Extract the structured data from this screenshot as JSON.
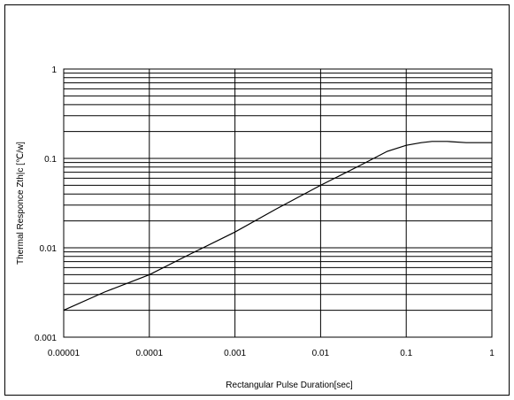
{
  "chart_data": {
    "type": "line",
    "title": "",
    "xlabel": "Rectangular Pulse Duration[sec]",
    "ylabel": "Thermal Responce Zth|c [℃/w]",
    "x_scale": "log",
    "y_scale": "log",
    "xlim": [
      1e-05,
      1
    ],
    "ylim": [
      0.001,
      1
    ],
    "grid": true,
    "x_ticks": [
      "0.00001",
      "0.0001",
      "0.001",
      "0.01",
      "0.1",
      "1"
    ],
    "y_ticks": [
      "0.001",
      "0.01",
      "0.1",
      "1"
    ],
    "series": [
      {
        "color": "#000000",
        "x": [
          1e-05,
          3e-05,
          0.0001,
          0.0003,
          0.001,
          0.003,
          0.01,
          0.03,
          0.06,
          0.1,
          0.15,
          0.2,
          0.3,
          0.5,
          1
        ],
        "y": [
          0.002,
          0.0032,
          0.005,
          0.0085,
          0.015,
          0.027,
          0.05,
          0.085,
          0.12,
          0.14,
          0.15,
          0.155,
          0.155,
          0.15,
          0.15
        ]
      }
    ]
  }
}
